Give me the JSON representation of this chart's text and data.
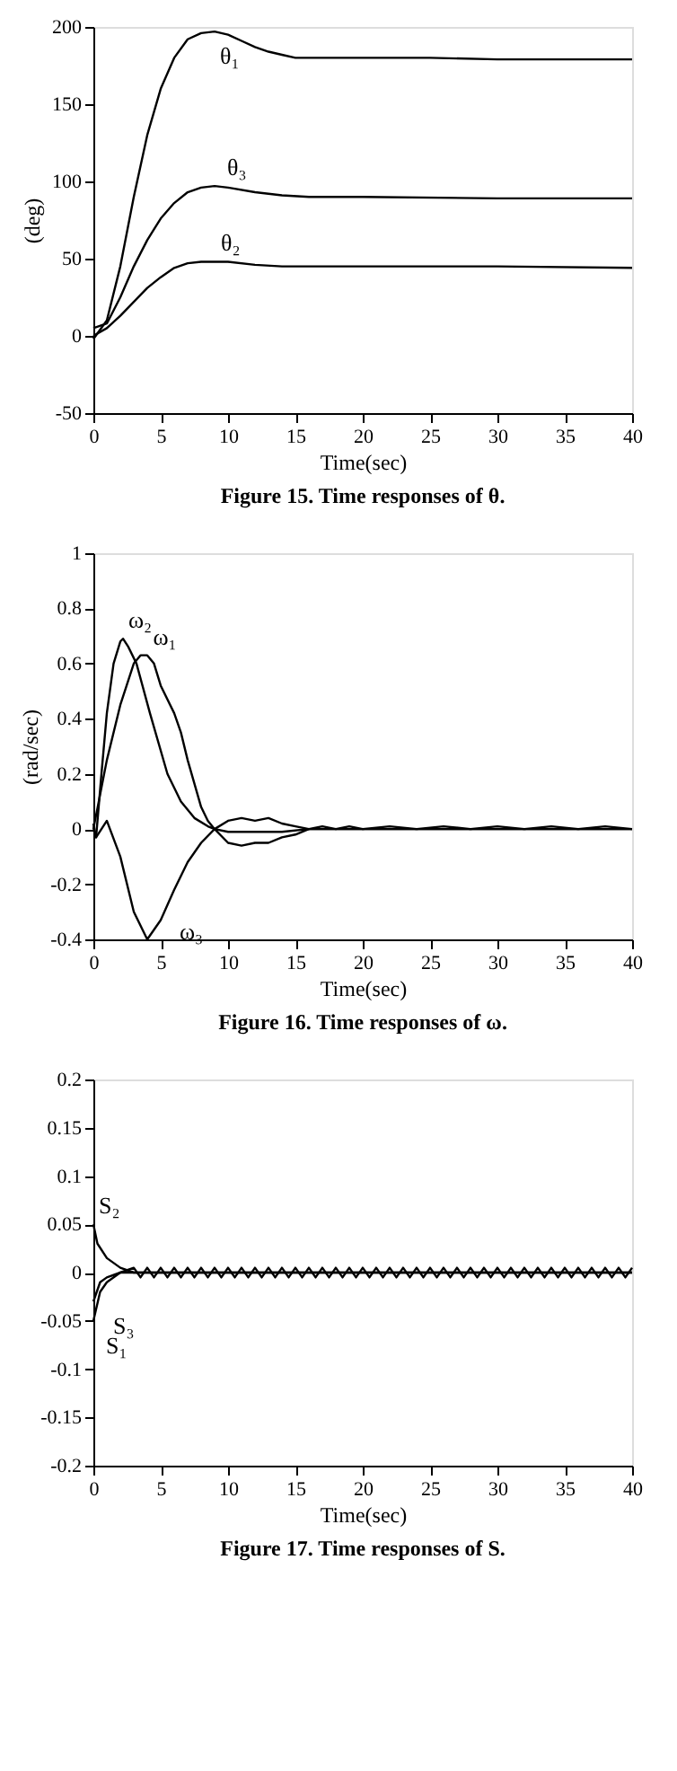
{
  "chart_data": [
    {
      "type": "line",
      "title": "Figure 15.   Time responses of θ.",
      "xlabel": "Time(sec)",
      "ylabel": "(deg)",
      "xlim": [
        0,
        40
      ],
      "xticks": [
        0,
        5,
        10,
        15,
        20,
        25,
        30,
        35,
        40
      ],
      "ylim": [
        -50,
        200
      ],
      "yticks": [
        -50,
        0,
        50,
        100,
        150,
        200
      ],
      "grid": false,
      "marker": "none",
      "line_style": "solid",
      "series": [
        {
          "name": "θ₁",
          "color": "#000000",
          "x": [
            0,
            1,
            2,
            3,
            4,
            5,
            6,
            7,
            8,
            9,
            10,
            11,
            12,
            13,
            14,
            15,
            16,
            20,
            25,
            30,
            35,
            40
          ],
          "values": [
            -2,
            10,
            45,
            90,
            130,
            160,
            180,
            192,
            196,
            197,
            195,
            191,
            187,
            184,
            182,
            180,
            180,
            180,
            180,
            179,
            179,
            179
          ]
        },
        {
          "name": "θ₃",
          "color": "#000000",
          "x": [
            0,
            1,
            2,
            3,
            4,
            5,
            6,
            7,
            8,
            9,
            10,
            12,
            14,
            16,
            20,
            30,
            40
          ],
          "values": [
            5,
            8,
            25,
            45,
            62,
            76,
            86,
            93,
            96,
            97,
            96,
            93,
            91,
            90,
            90,
            89,
            89
          ]
        },
        {
          "name": "θ₂",
          "color": "#000000",
          "x": [
            0,
            1,
            2,
            3,
            4,
            5,
            6,
            7,
            8,
            10,
            12,
            14,
            20,
            30,
            40
          ],
          "values": [
            0,
            5,
            13,
            22,
            31,
            38,
            44,
            47,
            48,
            48,
            46,
            45,
            45,
            45,
            44
          ]
        }
      ]
    },
    {
      "type": "line",
      "title": "Figure 16.   Time responses of ω.",
      "xlabel": "Time(sec)",
      "ylabel": "(rad/sec)",
      "xlim": [
        0,
        40
      ],
      "xticks": [
        0,
        5,
        10,
        15,
        20,
        25,
        30,
        35,
        40
      ],
      "ylim": [
        -0.4,
        1
      ],
      "yticks": [
        -0.4,
        -0.2,
        0,
        0.2,
        0.4,
        0.6,
        0.8,
        1
      ],
      "grid": false,
      "marker": "none",
      "line_style": "solid",
      "series": [
        {
          "name": "ω₂",
          "color": "#000000",
          "x": [
            0,
            0.2,
            0.6,
            1,
            1.5,
            2,
            2.2,
            2.6,
            3.2,
            4.2,
            5.5,
            6.5,
            7.5,
            8.5,
            9,
            10,
            12,
            14,
            16,
            20,
            30,
            40
          ],
          "values": [
            0,
            -0.03,
            0.2,
            0.42,
            0.6,
            0.68,
            0.69,
            0.66,
            0.6,
            0.42,
            0.2,
            0.1,
            0.04,
            0.01,
            0,
            -0.01,
            -0.01,
            -0.01,
            0,
            0,
            0,
            0
          ]
        },
        {
          "name": "ω₁",
          "color": "#000000",
          "x": [
            0,
            1,
            2,
            3,
            3.5,
            4,
            4.5,
            5,
            6,
            6.5,
            7,
            8,
            8.5,
            9,
            10,
            11,
            12,
            13,
            14,
            15,
            16,
            17,
            18,
            19,
            20,
            22,
            24,
            26,
            28,
            30,
            32,
            34,
            36,
            38,
            40
          ],
          "values": [
            0,
            0.25,
            0.45,
            0.6,
            0.63,
            0.63,
            0.6,
            0.52,
            0.42,
            0.35,
            0.25,
            0.08,
            0.03,
            0,
            0.03,
            0.04,
            0.03,
            0.04,
            0.02,
            0.01,
            0,
            0.01,
            0,
            0.01,
            0,
            0.01,
            0,
            0.01,
            0,
            0.01,
            0,
            0.01,
            0,
            0.01,
            0
          ]
        },
        {
          "name": "ω₃",
          "color": "#000000",
          "x": [
            0,
            0.2,
            1,
            2,
            3,
            4,
            5,
            6,
            7,
            8,
            9,
            10,
            11,
            12,
            13,
            14,
            15,
            16,
            20,
            30,
            40
          ],
          "values": [
            0.02,
            -0.03,
            0.03,
            -0.1,
            -0.3,
            -0.4,
            -0.33,
            -0.22,
            -0.12,
            -0.05,
            0,
            -0.05,
            -0.06,
            -0.05,
            -0.05,
            -0.03,
            -0.02,
            0,
            0,
            0,
            0
          ]
        }
      ]
    },
    {
      "type": "line",
      "title": "Figure 17.   Time responses of S.",
      "xlabel": "Time(sec)",
      "xlim": [
        0,
        40
      ],
      "xticks": [
        0,
        5,
        10,
        15,
        20,
        25,
        30,
        35,
        40
      ],
      "ylim": [
        -0.2,
        0.2
      ],
      "yticks": [
        -0.2,
        -0.15,
        -0.1,
        -0.05,
        0,
        0.05,
        0.1,
        0.15,
        0.2
      ],
      "grid": false,
      "marker": "none",
      "line_style": "solid",
      "series": [
        {
          "name": "S₂",
          "color": "#000000",
          "x": [
            0,
            0.3,
            1,
            2,
            3,
            40
          ],
          "values": [
            0.05,
            0.03,
            0.015,
            0.005,
            0,
            0
          ]
        },
        {
          "name": "S₁",
          "color": "#000000",
          "x": [
            0,
            0.5,
            1,
            2,
            3,
            3.5,
            4,
            4.5,
            5,
            5.5,
            6,
            6.5,
            7,
            7.5,
            8,
            8.5,
            9,
            9.5,
            10,
            10.5,
            11,
            11.5,
            12,
            12.5,
            13,
            13.5,
            14,
            14.5,
            15,
            15.5,
            16,
            16.5,
            17,
            17.5,
            18,
            18.5,
            19,
            19.5,
            20,
            20.5,
            21,
            21.5,
            22,
            22.5,
            23,
            23.5,
            24,
            24.5,
            25,
            25.5,
            26,
            26.5,
            27,
            27.5,
            28,
            28.5,
            29,
            29.5,
            30,
            30.5,
            31,
            31.5,
            32,
            32.5,
            33,
            33.5,
            34,
            34.5,
            35,
            35.5,
            36,
            36.5,
            37,
            37.5,
            38,
            38.5,
            39,
            39.5,
            40
          ],
          "values": [
            -0.05,
            -0.02,
            -0.01,
            0,
            0.005,
            -0.005,
            0.005,
            -0.005,
            0.005,
            -0.005,
            0.005,
            -0.005,
            0.005,
            -0.005,
            0.005,
            -0.005,
            0.005,
            -0.005,
            0.005,
            -0.005,
            0.005,
            -0.005,
            0.005,
            -0.005,
            0.005,
            -0.005,
            0.005,
            -0.005,
            0.005,
            -0.005,
            0.005,
            -0.005,
            0.005,
            -0.005,
            0.005,
            -0.005,
            0.005,
            -0.005,
            0.005,
            -0.005,
            0.005,
            -0.005,
            0.005,
            -0.005,
            0.005,
            -0.005,
            0.005,
            -0.005,
            0.005,
            -0.005,
            0.005,
            -0.005,
            0.005,
            -0.005,
            0.005,
            -0.005,
            0.005,
            -0.005,
            0.005,
            -0.005,
            0.005,
            -0.005,
            0.005,
            -0.005,
            0.005,
            -0.005,
            0.005,
            -0.005,
            0.005,
            -0.005,
            0.005,
            -0.005,
            0.005,
            -0.005,
            0.005,
            -0.005,
            0.005,
            -0.005,
            0.005
          ]
        },
        {
          "name": "S₃",
          "color": "#000000",
          "x": [
            0,
            0.5,
            1,
            2,
            3,
            40
          ],
          "values": [
            -0.03,
            -0.01,
            -0.005,
            0,
            0,
            0
          ]
        }
      ]
    }
  ]
}
